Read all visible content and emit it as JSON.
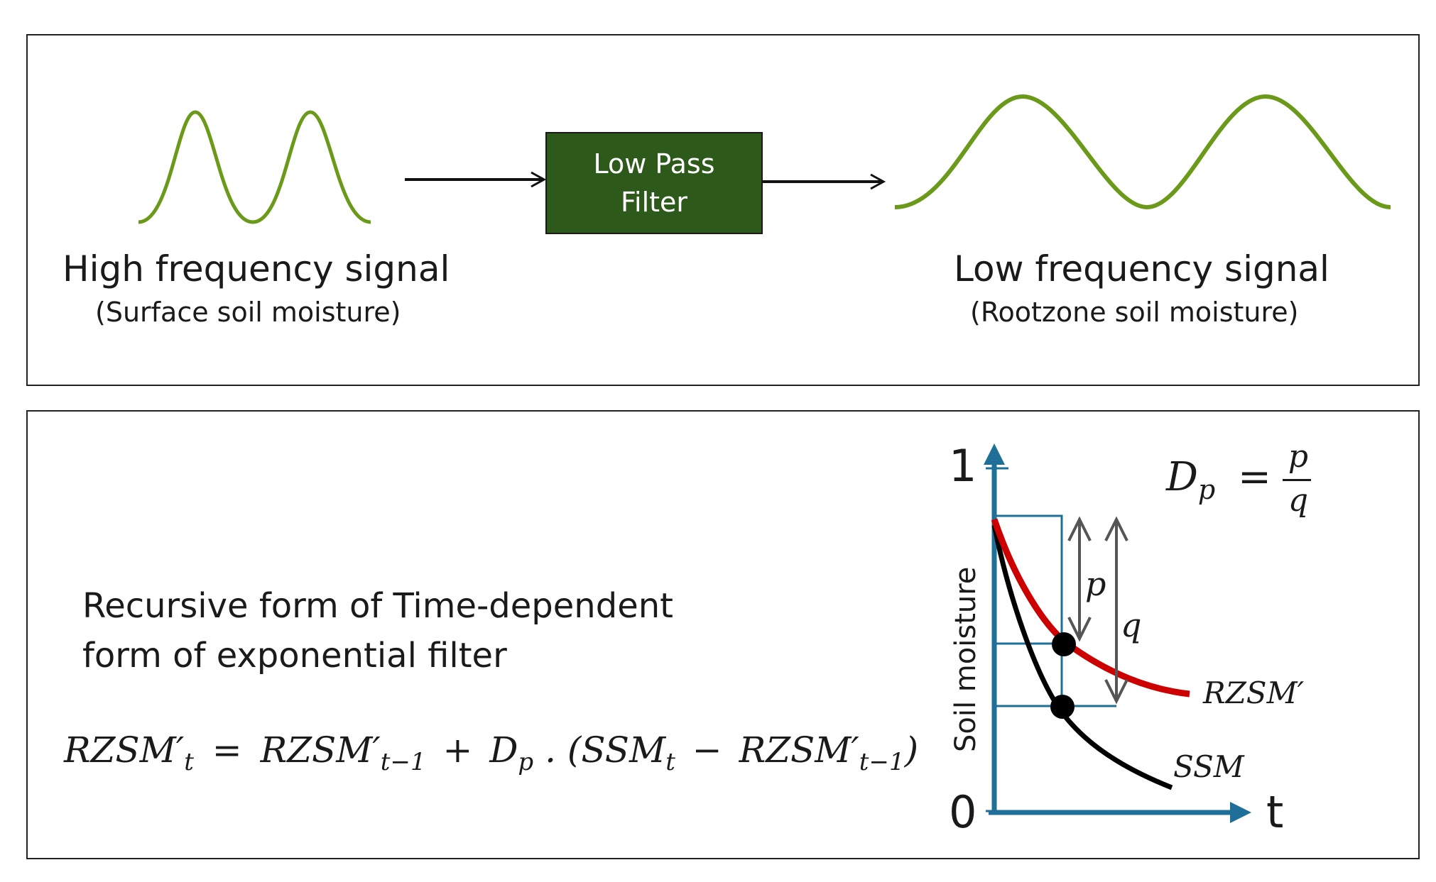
{
  "top_panel": {
    "filter_label": "Low Pass\nFilter",
    "input": {
      "title": "High frequency signal",
      "subtitle": "(Surface soil moisture)"
    },
    "output": {
      "title": "Low frequency signal",
      "subtitle": "(Rootzone soil moisture)"
    },
    "colors": {
      "wave": "#6b9a1a",
      "filter_box": "#2d5a1b"
    }
  },
  "bottom_panel": {
    "description_line1": "Recursive form of Time-dependent",
    "description_line2": "form of exponential filter",
    "formula": {
      "lhs": "RZSM′",
      "lhs_sub": "t",
      "eq": "=",
      "term1": "RZSM′",
      "term1_sub": "t−1",
      "plus": "+",
      "term2": "D",
      "term2_sub": "p",
      "dot_open": ". (SSM",
      "ssm_sub": "t",
      "minus": "−",
      "term3": "RZSM′",
      "term3_sub": "t−1",
      "close": ")"
    },
    "graph": {
      "y_axis_label": "Soil moisture",
      "x_axis_label": "t",
      "y_tick_top": "1",
      "y_tick_bottom": "0",
      "p_label": "p",
      "q_label": "q",
      "rzsm_label": "RZSM′",
      "ssm_label": "SSM",
      "dp_lhs": "D",
      "dp_sub": "p",
      "dp_eq": "=",
      "dp_num": "p",
      "dp_den": "q",
      "colors": {
        "axis": "#1f6f99",
        "rzsm_curve": "#cc0000",
        "ssm_curve": "#000000",
        "arrow": "#555555"
      }
    }
  }
}
